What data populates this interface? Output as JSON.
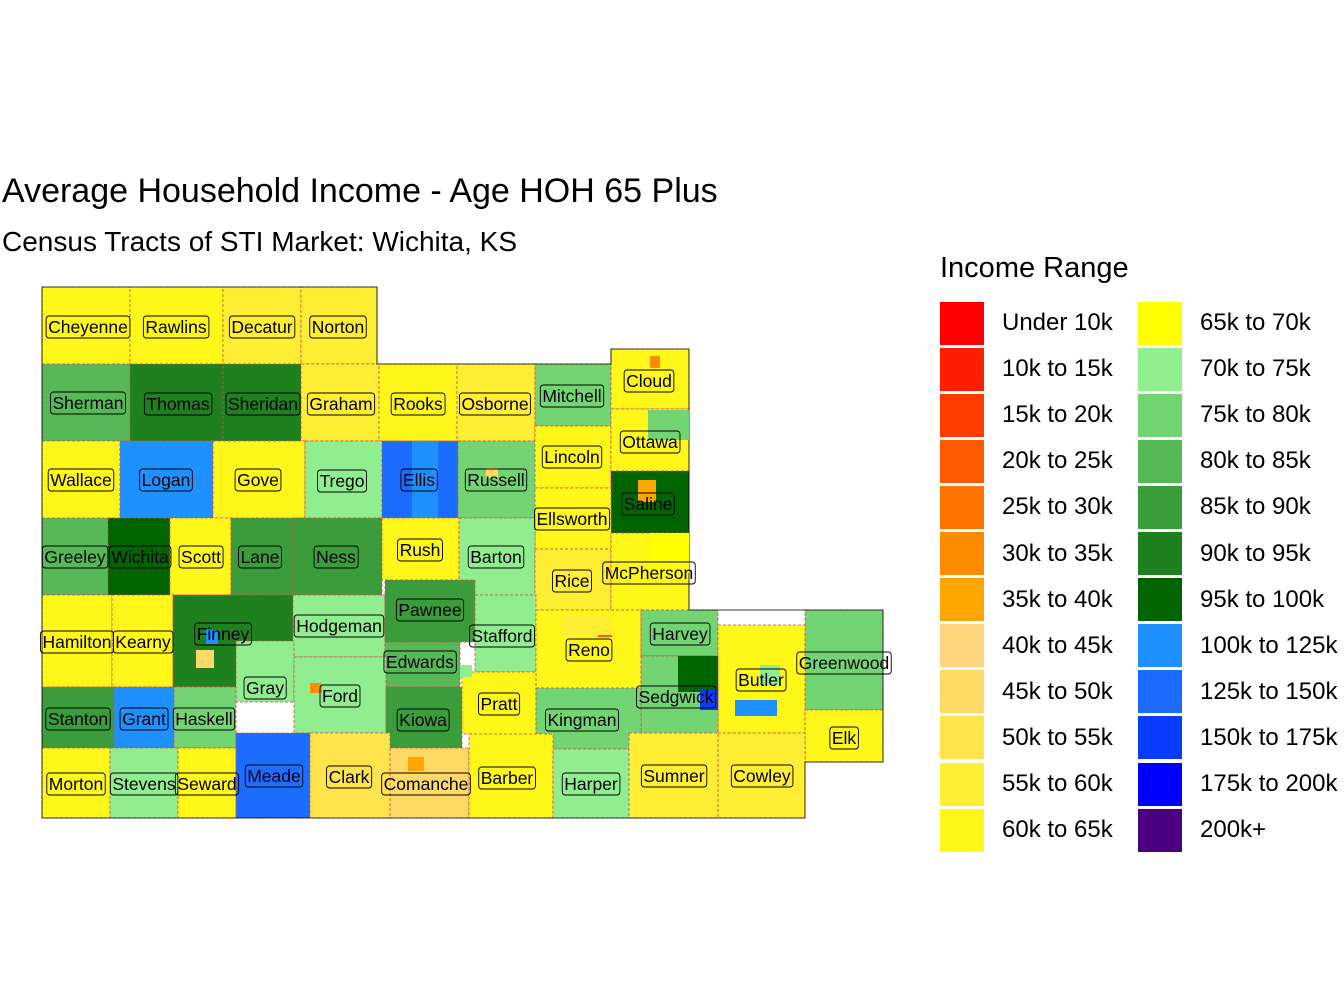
{
  "title": "Average Household Income - Age HOH 65 Plus",
  "subtitle": "Census Tracts of STI Market: Wichita, KS",
  "legend": {
    "title": "Income Range",
    "items": [
      {
        "label": "Under 10k",
        "color": "#FF0000"
      },
      {
        "label": "10k to 15k",
        "color": "#FF1E00"
      },
      {
        "label": "15k to 20k",
        "color": "#FF3C00"
      },
      {
        "label": "20k to 25k",
        "color": "#FF5A00"
      },
      {
        "label": "25k to 30k",
        "color": "#FF7300"
      },
      {
        "label": "30k to 35k",
        "color": "#FF8C00"
      },
      {
        "label": "35k to 40k",
        "color": "#FFA500"
      },
      {
        "label": "40k to 45k",
        "color": "#FFD580"
      },
      {
        "label": "45k to 50k",
        "color": "#FFD966"
      },
      {
        "label": "50k to 55k",
        "color": "#FFE44D"
      },
      {
        "label": "55k to 60k",
        "color": "#FFEE33"
      },
      {
        "label": "60k to 65k",
        "color": "#FFF71A"
      },
      {
        "label": "65k to 70k",
        "color": "#FFFF00"
      },
      {
        "label": "70k to 75k",
        "color": "#90EE90"
      },
      {
        "label": "75k to 80k",
        "color": "#72D472"
      },
      {
        "label": "80k to 85k",
        "color": "#56B856"
      },
      {
        "label": "85k to 90k",
        "color": "#3A9C3A"
      },
      {
        "label": "90k to 95k",
        "color": "#1E801E"
      },
      {
        "label": "95k to 100k",
        "color": "#006400"
      },
      {
        "label": "100k to 125k",
        "color": "#1E90FF"
      },
      {
        "label": "125k to 150k",
        "color": "#1C6CFF"
      },
      {
        "label": "150k to 175k",
        "color": "#0A3CFF"
      },
      {
        "label": "175k to 200k",
        "color": "#0000FF"
      },
      {
        "label": "200k+",
        "color": "#4B0082"
      }
    ]
  },
  "counties": [
    {
      "name": "Cheyenne",
      "range": "60k to 65k"
    },
    {
      "name": "Rawlins",
      "range": "60k to 65k"
    },
    {
      "name": "Decatur",
      "range": "55k to 60k"
    },
    {
      "name": "Norton",
      "range": "55k to 60k"
    },
    {
      "name": "Sherman",
      "range": "80k to 85k"
    },
    {
      "name": "Thomas",
      "range": "90k to 95k"
    },
    {
      "name": "Sheridan",
      "range": "90k to 95k"
    },
    {
      "name": "Graham",
      "range": "55k to 60k"
    },
    {
      "name": "Rooks",
      "range": "60k to 65k"
    },
    {
      "name": "Osborne",
      "range": "55k to 60k"
    },
    {
      "name": "Mitchell",
      "range": "75k to 80k"
    },
    {
      "name": "Cloud",
      "range": "60k to 65k"
    },
    {
      "name": "Wallace",
      "range": "60k to 65k"
    },
    {
      "name": "Logan",
      "range": "100k to 125k"
    },
    {
      "name": "Gove",
      "range": "60k to 65k"
    },
    {
      "name": "Trego",
      "range": "70k to 75k"
    },
    {
      "name": "Ellis",
      "range": "125k to 150k"
    },
    {
      "name": "Russell",
      "range": "75k to 80k"
    },
    {
      "name": "Lincoln",
      "range": "60k to 65k"
    },
    {
      "name": "Ottawa",
      "range": "60k to 65k"
    },
    {
      "name": "Saline",
      "range": "95k to 100k"
    },
    {
      "name": "Ellsworth",
      "range": "60k to 65k"
    },
    {
      "name": "Greeley",
      "range": "80k to 85k"
    },
    {
      "name": "Wichita",
      "range": "95k to 100k"
    },
    {
      "name": "Scott",
      "range": "60k to 65k"
    },
    {
      "name": "Lane",
      "range": "85k to 90k"
    },
    {
      "name": "Ness",
      "range": "85k to 90k"
    },
    {
      "name": "Rush",
      "range": "60k to 65k"
    },
    {
      "name": "Barton",
      "range": "70k to 75k"
    },
    {
      "name": "Rice",
      "range": "55k to 60k"
    },
    {
      "name": "McPherson",
      "range": "60k to 65k"
    },
    {
      "name": "Hamilton",
      "range": "60k to 65k"
    },
    {
      "name": "Kearny",
      "range": "60k to 65k"
    },
    {
      "name": "Finney",
      "range": "90k to 95k"
    },
    {
      "name": "Hodgeman",
      "range": "70k to 75k"
    },
    {
      "name": "Pawnee",
      "range": "85k to 90k"
    },
    {
      "name": "Stafford",
      "range": "70k to 75k"
    },
    {
      "name": "Edwards",
      "range": "80k to 85k"
    },
    {
      "name": "Reno",
      "range": "60k to 65k"
    },
    {
      "name": "Harvey",
      "range": "75k to 80k"
    },
    {
      "name": "Greenwood",
      "range": "75k to 80k"
    },
    {
      "name": "Butler",
      "range": "60k to 65k"
    },
    {
      "name": "Gray",
      "range": "70k to 75k"
    },
    {
      "name": "Ford",
      "range": "70k to 75k"
    },
    {
      "name": "Sedgwick",
      "range": "75k to 80k"
    },
    {
      "name": "Stanton",
      "range": "85k to 90k"
    },
    {
      "name": "Grant",
      "range": "100k to 125k"
    },
    {
      "name": "Haskell",
      "range": "75k to 80k"
    },
    {
      "name": "Kiowa",
      "range": "85k to 90k"
    },
    {
      "name": "Pratt",
      "range": "60k to 65k"
    },
    {
      "name": "Kingman",
      "range": "75k to 80k"
    },
    {
      "name": "Elk",
      "range": "60k to 65k"
    },
    {
      "name": "Morton",
      "range": "60k to 65k"
    },
    {
      "name": "Stevens",
      "range": "70k to 75k"
    },
    {
      "name": "Seward",
      "range": "60k to 65k"
    },
    {
      "name": "Meade",
      "range": "125k to 150k"
    },
    {
      "name": "Clark",
      "range": "50k to 55k"
    },
    {
      "name": "Comanche",
      "range": "45k to 50k"
    },
    {
      "name": "Barber",
      "range": "60k to 65k"
    },
    {
      "name": "Harper",
      "range": "70k to 75k"
    },
    {
      "name": "Sumner",
      "range": "55k to 60k"
    },
    {
      "name": "Cowley",
      "range": "55k to 60k"
    }
  ]
}
